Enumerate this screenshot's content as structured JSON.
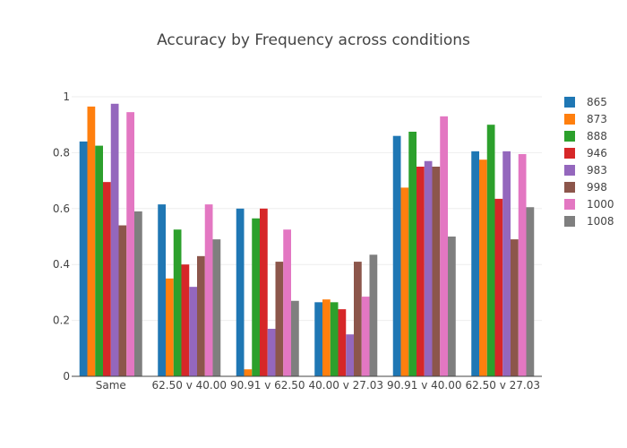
{
  "chart_data": {
    "type": "bar",
    "title": "Accuracy by Frequency across conditions",
    "xlabel": "",
    "ylabel": "",
    "ylim": [
      0,
      1
    ],
    "yticks": [
      {
        "value": 0,
        "label": "0"
      },
      {
        "value": 0.2,
        "label": "0.2"
      },
      {
        "value": 0.4,
        "label": "0.4"
      },
      {
        "value": 0.6,
        "label": "0.6"
      },
      {
        "value": 0.8,
        "label": "0.8"
      },
      {
        "value": 1,
        "label": "1"
      }
    ],
    "grid": true,
    "legend_position": "right",
    "categories": [
      "Same",
      "62.50 v 40.00",
      "90.91 v 62.50",
      "40.00 v 27.03",
      "90.91 v 40.00",
      "62.50 v 27.03"
    ],
    "series": [
      {
        "name": "865",
        "color": "#1f77b4",
        "values": [
          0.84,
          0.615,
          0.6,
          0.265,
          0.86,
          0.805
        ]
      },
      {
        "name": "873",
        "color": "#ff7f0e",
        "values": [
          0.965,
          0.35,
          0.025,
          0.275,
          0.675,
          0.775
        ]
      },
      {
        "name": "888",
        "color": "#2ca02c",
        "values": [
          0.825,
          0.525,
          0.565,
          0.265,
          0.875,
          0.9
        ]
      },
      {
        "name": "946",
        "color": "#d62728",
        "values": [
          0.695,
          0.4,
          0.6,
          0.24,
          0.75,
          0.635
        ]
      },
      {
        "name": "983",
        "color": "#9467bd",
        "values": [
          0.975,
          0.32,
          0.17,
          0.15,
          0.77,
          0.805
        ]
      },
      {
        "name": "998",
        "color": "#8c564b",
        "values": [
          0.54,
          0.43,
          0.41,
          0.41,
          0.75,
          0.49
        ]
      },
      {
        "name": "1000",
        "color": "#e377c2",
        "values": [
          0.945,
          0.615,
          0.525,
          0.285,
          0.93,
          0.795
        ]
      },
      {
        "name": "1008",
        "color": "#7f7f7f",
        "values": [
          0.59,
          0.49,
          0.27,
          0.435,
          0.5,
          0.605
        ]
      }
    ]
  }
}
